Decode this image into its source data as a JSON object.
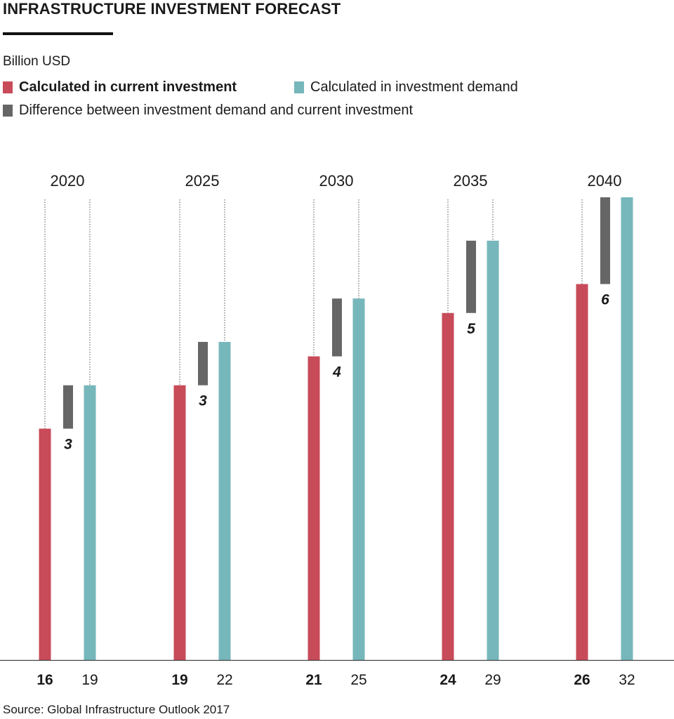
{
  "title": "INFRASTRUCTURE INVESTMENT FORECAST",
  "unit_label": "Billion USD",
  "legend": {
    "current": "Calculated in current investment",
    "demand": "Calculated in investment demand",
    "difference": "Difference between investment demand and current investment"
  },
  "colors": {
    "current": "#c84b59",
    "demand": "#76b7bb",
    "difference": "#666666",
    "axis": "#444444",
    "guide": "#555555"
  },
  "source": "Source: Global Infrastructure Outlook 2017",
  "chart_data": {
    "type": "bar",
    "categories": [
      "2020",
      "2025",
      "2030",
      "2035",
      "2040"
    ],
    "series": [
      {
        "name": "Calculated in current investment",
        "values": [
          16,
          19,
          21,
          24,
          26
        ]
      },
      {
        "name": "Calculated in investment demand",
        "values": [
          19,
          22,
          25,
          29,
          32
        ]
      },
      {
        "name": "Difference between investment demand and current investment",
        "values": [
          3,
          3,
          4,
          5,
          6
        ]
      }
    ],
    "value_labels": {
      "current": [
        "16",
        "19",
        "21",
        "24",
        "26"
      ],
      "demand": [
        "19",
        "22",
        "25",
        "29",
        "32"
      ],
      "difference": [
        "3",
        "3",
        "4",
        "5",
        "6"
      ]
    },
    "ylim": [
      0,
      32
    ],
    "grid": false,
    "legend_position": "top-left"
  }
}
